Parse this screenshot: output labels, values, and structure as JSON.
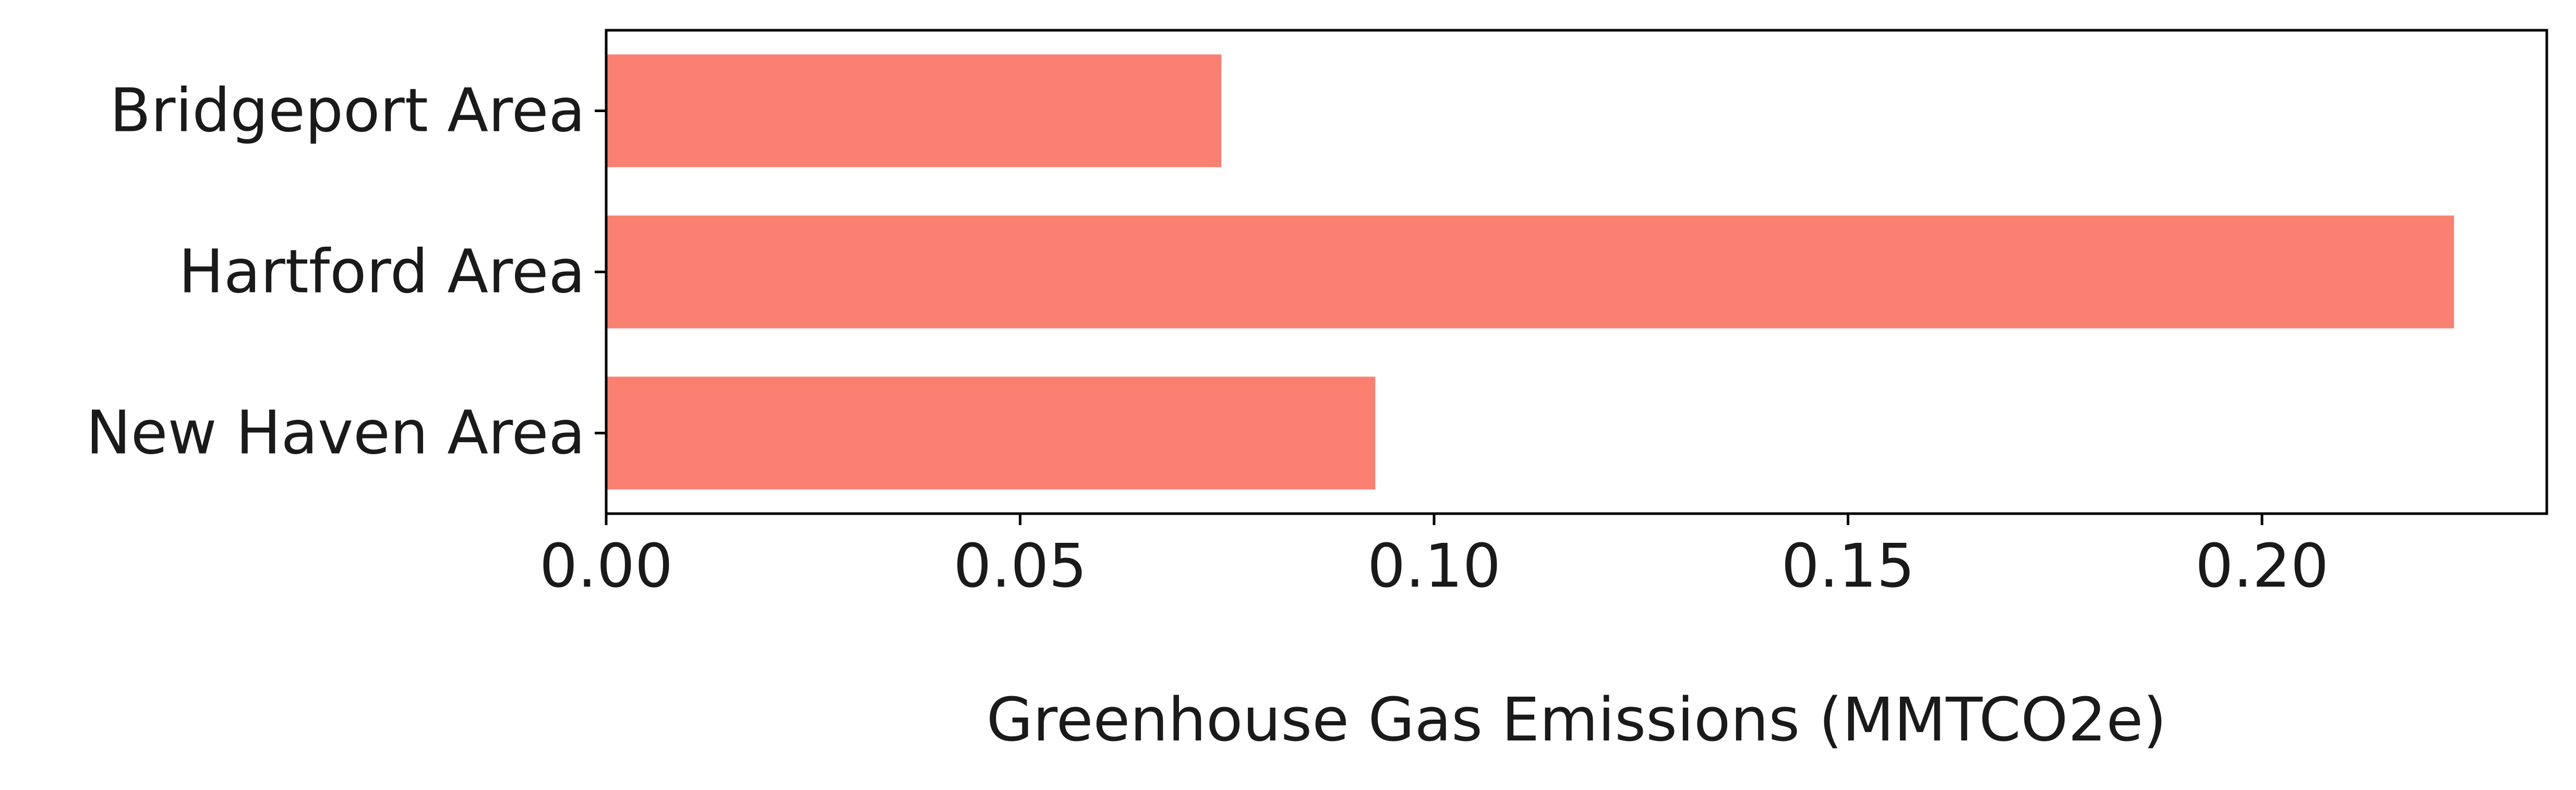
{
  "chart_data": {
    "type": "bar",
    "orientation": "horizontal",
    "categories": [
      "Bridgeport Area",
      "Hartford Area",
      "New Haven Area"
    ],
    "values": [
      0.0743,
      0.2232,
      0.0929
    ],
    "title": "",
    "xlabel": "Greenhouse Gas Emissions (MMTCO2e)",
    "ylabel": "",
    "xlim": [
      0,
      0.2344
    ],
    "xticks": [
      0.0,
      0.05,
      0.1,
      0.15,
      0.2
    ],
    "xtick_labels": [
      "0.00",
      "0.05",
      "0.10",
      "0.15",
      "0.20"
    ],
    "bar_color": "#fa8072",
    "grid": false,
    "legend": "none"
  }
}
